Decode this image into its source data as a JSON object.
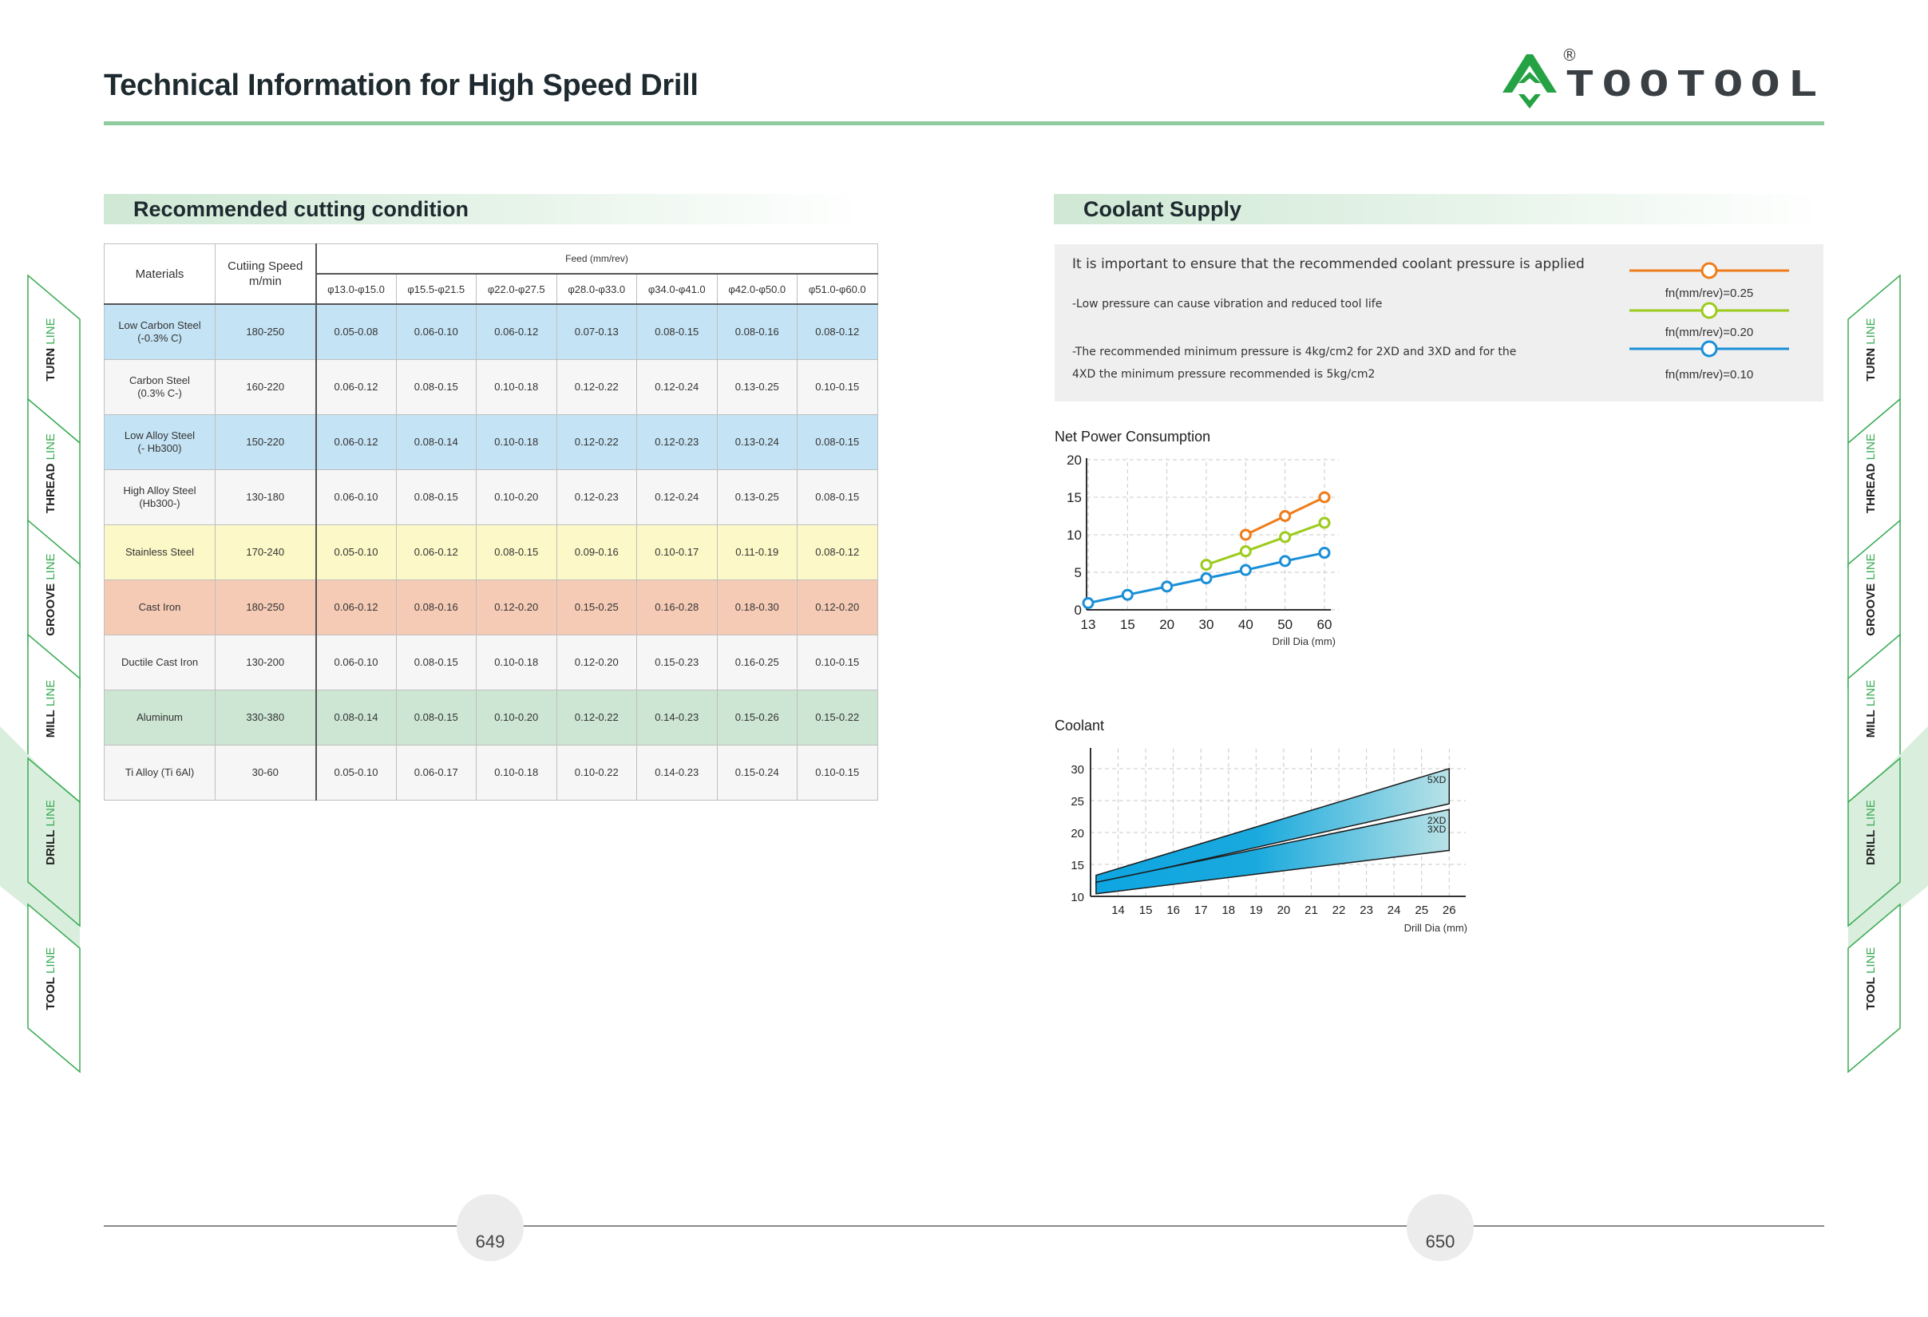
{
  "header": {
    "title": "Technical Information for High Speed Drill",
    "brand": "TOOTOOL",
    "registered": "®"
  },
  "colors": {
    "accent": "#8fcb9e",
    "logo_green": "#25a244",
    "orange": "#ef7c1a",
    "lime": "#9ccb1c",
    "blue": "#1a8fd8",
    "row_blue": "#c4e3f4",
    "row_gray": "#f6f6f6",
    "row_yellow": "#fdf8c7",
    "row_salmon": "#f6cbb6",
    "row_green": "#cde6d3"
  },
  "left_section": {
    "heading": "Recommended cutting condition",
    "table": {
      "col_materials": "Materials",
      "col_speed": "Cutiing Speed m/min",
      "feed_header": "Feed (mm/rev)",
      "feed_ranges": [
        "φ13.0-φ15.0",
        "φ15.5-φ21.5",
        "φ22.0-φ27.5",
        "φ28.0-φ33.0",
        "φ34.0-φ41.0",
        "φ42.0-φ50.0",
        "φ51.0-φ60.0"
      ],
      "rows": [
        {
          "material": "Low Carbon Steel\n(-0.3% C)",
          "speed": "180-250",
          "feed": [
            "0.05-0.08",
            "0.06-0.10",
            "0.06-0.12",
            "0.07-0.13",
            "0.08-0.15",
            "0.08-0.16",
            "0.08-0.12"
          ],
          "tone": "blue"
        },
        {
          "material": "Carbon Steel\n(0.3% C-)",
          "speed": "160-220",
          "feed": [
            "0.06-0.12",
            "0.08-0.15",
            "0.10-0.18",
            "0.12-0.22",
            "0.12-0.24",
            "0.13-0.25",
            "0.10-0.15"
          ],
          "tone": "gray"
        },
        {
          "material": "Low Alloy Steel\n(- Hb300)",
          "speed": "150-220",
          "feed": [
            "0.06-0.12",
            "0.08-0.14",
            "0.10-0.18",
            "0.12-0.22",
            "0.12-0.23",
            "0.13-0.24",
            "0.08-0.15"
          ],
          "tone": "blue"
        },
        {
          "material": "High Alloy Steel\n(Hb300-)",
          "speed": "130-180",
          "feed": [
            "0.06-0.10",
            "0.08-0.15",
            "0.10-0.20",
            "0.12-0.23",
            "0.12-0.24",
            "0.13-0.25",
            "0.08-0.15"
          ],
          "tone": "gray"
        },
        {
          "material": "Stainless Steel",
          "speed": "170-240",
          "feed": [
            "0.05-0.10",
            "0.06-0.12",
            "0.08-0.15",
            "0.09-0.16",
            "0.10-0.17",
            "0.11-0.19",
            "0.08-0.12"
          ],
          "tone": "yellow"
        },
        {
          "material": "Cast Iron",
          "speed": "180-250",
          "feed": [
            "0.06-0.12",
            "0.08-0.16",
            "0.12-0.20",
            "0.15-0.25",
            "0.16-0.28",
            "0.18-0.30",
            "0.12-0.20"
          ],
          "tone": "salmon"
        },
        {
          "material": "Ductile Cast Iron",
          "speed": "130-200",
          "feed": [
            "0.06-0.10",
            "0.08-0.15",
            "0.10-0.18",
            "0.12-0.20",
            "0.15-0.23",
            "0.16-0.25",
            "0.10-0.15"
          ],
          "tone": "gray"
        },
        {
          "material": "Aluminum",
          "speed": "330-380",
          "feed": [
            "0.08-0.14",
            "0.08-0.15",
            "0.10-0.20",
            "0.12-0.22",
            "0.14-0.23",
            "0.15-0.26",
            "0.15-0.22"
          ],
          "tone": "green"
        },
        {
          "material": "Ti Alloy (Ti 6Al)",
          "speed": "30-60",
          "feed": [
            "0.05-0.10",
            "0.06-0.17",
            "0.10-0.18",
            "0.10-0.22",
            "0.14-0.23",
            "0.15-0.24",
            "0.10-0.15"
          ],
          "tone": "gray"
        }
      ]
    }
  },
  "right_section": {
    "heading": "Coolant Supply",
    "info": [
      "It is important to ensure that the recommended coolant pressure is applied",
      "-Low pressure can cause vibration and reduced tool life",
      "-The recommended minimum pressure is 4kg/cm2 for 2XD and 3XD and for the",
      "4XD the minimum pressure recommended is 5kg/cm2"
    ],
    "legend": [
      "fn(mm/rev)=0.25",
      "fn(mm/rev)=0.20",
      "fn(mm/rev)=0.10"
    ]
  },
  "chart_data": [
    {
      "type": "line",
      "title": "Net Power Consumption",
      "xlabel": "Drill Dia (mm)",
      "ylabel": "",
      "categories": [
        "13",
        "15",
        "20",
        "30",
        "40",
        "50",
        "60"
      ],
      "ylim": [
        0,
        20
      ],
      "yticks": [
        "0",
        "5",
        "10",
        "15",
        "20"
      ],
      "grid": true,
      "series": [
        {
          "name": "fn(mm/rev)=0.25",
          "color": "#ef7c1a",
          "values": [
            null,
            null,
            null,
            null,
            10,
            12.5,
            15
          ]
        },
        {
          "name": "fn(mm/rev)=0.20",
          "color": "#9ccb1c",
          "values": [
            null,
            null,
            null,
            6,
            7.8,
            9.7,
            11.6
          ]
        },
        {
          "name": "fn(mm/rev)=0.10",
          "color": "#1a8fd8",
          "values": [
            0.9,
            2,
            3.1,
            4.2,
            5.3,
            6.5,
            7.6
          ]
        }
      ]
    },
    {
      "type": "area",
      "title": "Coolant",
      "xlabel": "Drill Dia (mm)",
      "ylabel": "",
      "categories": [
        "14",
        "15",
        "16",
        "17",
        "18",
        "19",
        "20",
        "21",
        "22",
        "23",
        "24",
        "25",
        "26"
      ],
      "ylim": [
        10,
        30
      ],
      "yticks": [
        "10",
        "15",
        "20",
        "25",
        "30"
      ],
      "grid": true,
      "series": [
        {
          "name": "5XD",
          "x": [
            13.2,
            26
          ],
          "lower": [
            12,
            24.5
          ],
          "upper": [
            13.3,
            30
          ]
        },
        {
          "name": "2XD\n3XD",
          "x": [
            13.2,
            26
          ],
          "lower": [
            10.4,
            17.2
          ],
          "upper": [
            12.2,
            23.6
          ]
        }
      ]
    }
  ],
  "side_tabs": [
    {
      "word": "TURN",
      "suffix": "LINE",
      "active": false
    },
    {
      "word": "THREAD",
      "suffix": "LINE",
      "active": false
    },
    {
      "word": "GROOVE",
      "suffix": "LINE",
      "active": false
    },
    {
      "word": "MILL",
      "suffix": "LINE",
      "active": false
    },
    {
      "word": "DRILL",
      "suffix": "LINE",
      "active": true
    },
    {
      "word": "TOOL",
      "suffix": "LINE",
      "active": false
    }
  ],
  "footer": {
    "page_left": "649",
    "page_right": "650"
  }
}
